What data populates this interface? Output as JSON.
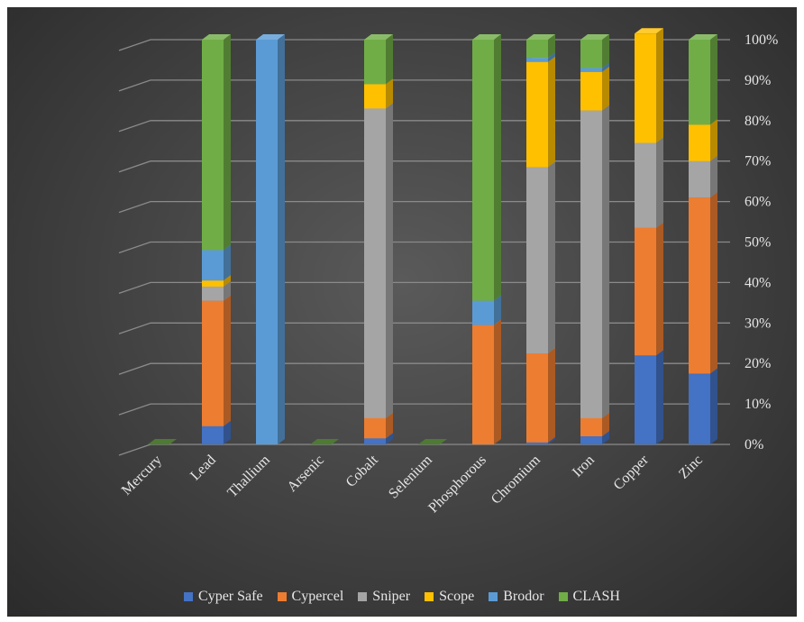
{
  "chart_data": {
    "type": "bar",
    "stacked": "percent",
    "three_d": true,
    "categories": [
      "Mercury",
      "Lead",
      "Thallium",
      "Arsenic",
      "Cobalt",
      "Selenium",
      "Phosphorous",
      "Chromium",
      "Iron",
      "Copper",
      "Zinc"
    ],
    "series": [
      {
        "name": "Cyper Safe",
        "color": "#4472c4",
        "values": [
          0,
          4.5,
          0,
          0,
          1.5,
          0,
          0,
          0.5,
          2,
          22,
          17.5
        ]
      },
      {
        "name": "Cypercel",
        "color": "#ed7d31",
        "values": [
          0,
          31,
          0,
          0,
          5,
          0,
          29.5,
          22,
          4.5,
          31.5,
          43.5
        ]
      },
      {
        "name": "Sniper",
        "color": "#a5a5a5",
        "values": [
          0,
          3.5,
          0,
          0,
          76.5,
          0,
          0,
          46,
          76,
          21,
          9
        ]
      },
      {
        "name": "Scope",
        "color": "#ffc000",
        "values": [
          0,
          1.5,
          0,
          0,
          6,
          0,
          0,
          26,
          9.5,
          27,
          9
        ]
      },
      {
        "name": "Brodor",
        "color": "#5b9bd5",
        "values": [
          0,
          7.5,
          100,
          0,
          0,
          0,
          6,
          1,
          1,
          0,
          0
        ]
      },
      {
        "name": "CLASH",
        "color": "#70ad47",
        "values": [
          0,
          52,
          0,
          0,
          11,
          0,
          64.5,
          4.5,
          7,
          0,
          21
        ]
      }
    ],
    "ytick_labels": [
      "0%",
      "10%",
      "20%",
      "30%",
      "40%",
      "50%",
      "60%",
      "70%",
      "80%",
      "90%",
      "100%"
    ],
    "ylim": [
      0,
      100
    ],
    "y_axis_position": "right",
    "grid": true,
    "legend_position": "bottom"
  }
}
